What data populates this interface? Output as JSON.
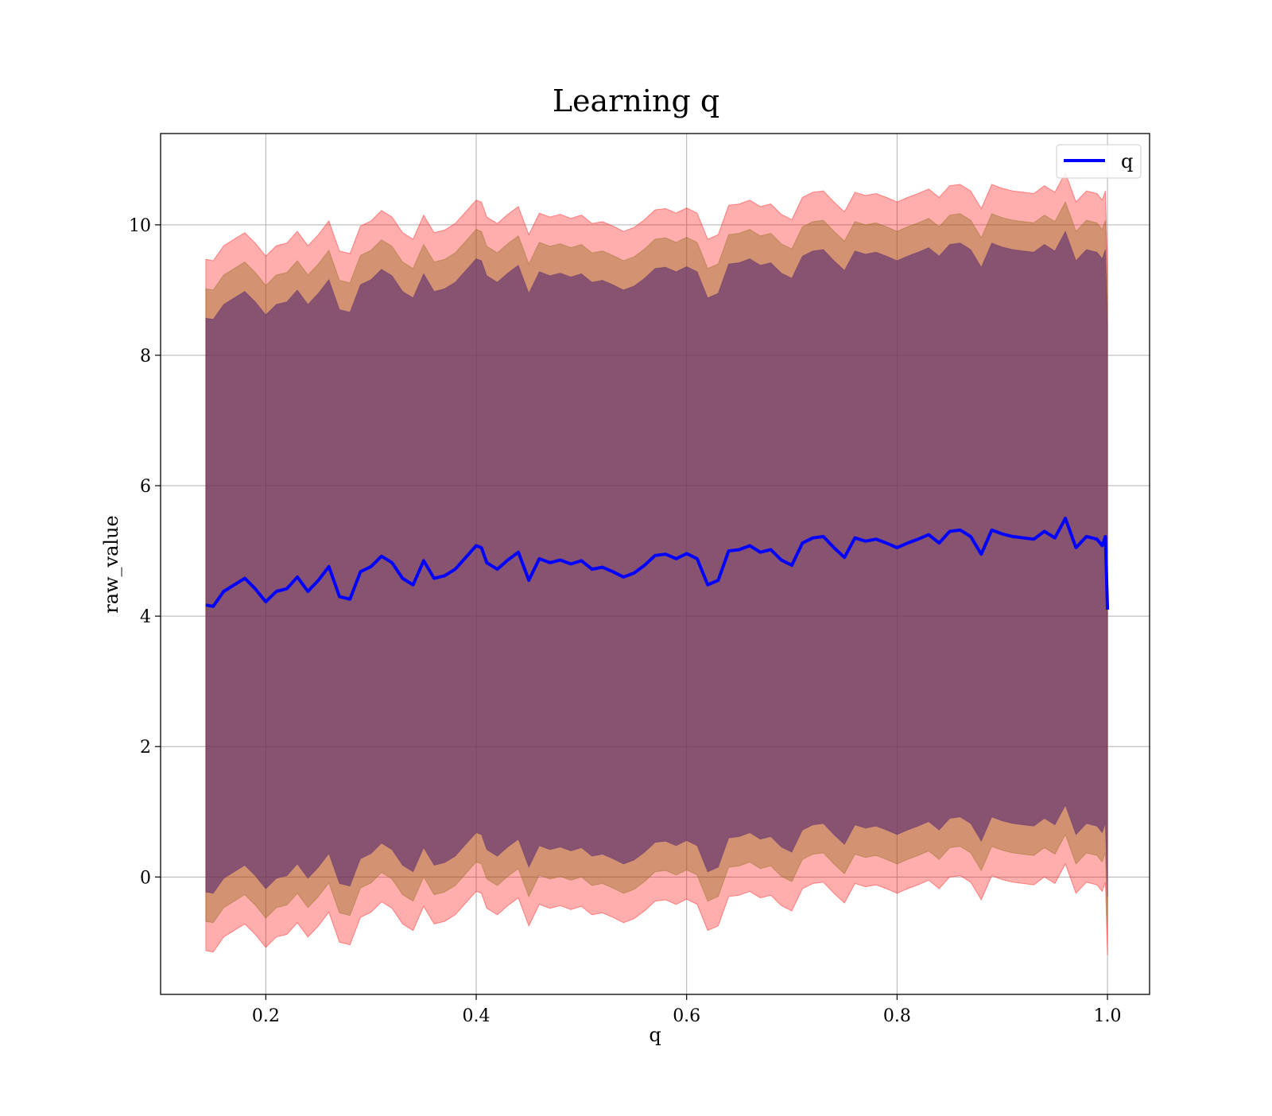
{
  "chart_data": {
    "type": "area",
    "title": "Learning q",
    "xlabel": "q",
    "ylabel": "raw_value",
    "xlim": [
      0.1,
      1.04
    ],
    "ylim": [
      -1.8,
      11.4
    ],
    "xticks": [
      0.2,
      0.4,
      0.6,
      0.8,
      1.0
    ],
    "xtick_labels": [
      "0.2",
      "0.4",
      "0.6",
      "0.8",
      "1.0"
    ],
    "yticks": [
      0,
      2,
      4,
      6,
      8,
      10
    ],
    "ytick_labels": [
      "0",
      "2",
      "4",
      "6",
      "8",
      "10"
    ],
    "grid": true,
    "legend": {
      "placement": "top-right",
      "entries": [
        "q"
      ]
    },
    "colors": {
      "line": "#0000ff",
      "outer_band": "#ff0000",
      "middle_band": "#8b6914",
      "inner_band": "#5b2c6f",
      "grid": "#b0b0b0"
    },
    "band_half_widths": {
      "outer": 5.3,
      "middle": 4.85,
      "inner": 4.4
    },
    "series": [
      {
        "name": "q",
        "x": [
          0.143,
          0.15,
          0.16,
          0.17,
          0.18,
          0.19,
          0.2,
          0.21,
          0.22,
          0.23,
          0.24,
          0.25,
          0.26,
          0.27,
          0.28,
          0.29,
          0.3,
          0.31,
          0.32,
          0.33,
          0.34,
          0.35,
          0.36,
          0.37,
          0.38,
          0.39,
          0.4,
          0.405,
          0.41,
          0.42,
          0.43,
          0.44,
          0.45,
          0.46,
          0.47,
          0.48,
          0.49,
          0.5,
          0.51,
          0.52,
          0.53,
          0.54,
          0.55,
          0.56,
          0.57,
          0.58,
          0.59,
          0.6,
          0.61,
          0.62,
          0.63,
          0.64,
          0.65,
          0.66,
          0.67,
          0.68,
          0.69,
          0.7,
          0.71,
          0.72,
          0.73,
          0.74,
          0.75,
          0.76,
          0.77,
          0.78,
          0.79,
          0.8,
          0.81,
          0.82,
          0.83,
          0.84,
          0.85,
          0.86,
          0.87,
          0.88,
          0.89,
          0.9,
          0.91,
          0.92,
          0.93,
          0.94,
          0.95,
          0.96,
          0.97,
          0.98,
          0.99,
          0.995,
          0.998,
          1.0
        ],
        "y": [
          4.17,
          4.15,
          4.38,
          4.48,
          4.58,
          4.42,
          4.22,
          4.38,
          4.42,
          4.6,
          4.38,
          4.55,
          4.76,
          4.3,
          4.26,
          4.68,
          4.76,
          4.92,
          4.82,
          4.58,
          4.48,
          4.85,
          4.58,
          4.62,
          4.72,
          4.9,
          5.08,
          5.05,
          4.82,
          4.72,
          4.86,
          4.98,
          4.55,
          4.88,
          4.82,
          4.86,
          4.8,
          4.85,
          4.72,
          4.75,
          4.68,
          4.6,
          4.66,
          4.78,
          4.93,
          4.95,
          4.88,
          4.96,
          4.88,
          4.48,
          4.55,
          5.0,
          5.02,
          5.08,
          4.98,
          5.02,
          4.86,
          4.78,
          5.12,
          5.2,
          5.22,
          5.05,
          4.9,
          5.2,
          5.15,
          5.18,
          5.12,
          5.05,
          5.12,
          5.18,
          5.25,
          5.12,
          5.3,
          5.32,
          5.22,
          4.95,
          5.32,
          5.26,
          5.22,
          5.2,
          5.18,
          5.3,
          5.2,
          5.5,
          5.05,
          5.22,
          5.18,
          5.08,
          5.22,
          4.1
        ]
      }
    ]
  }
}
